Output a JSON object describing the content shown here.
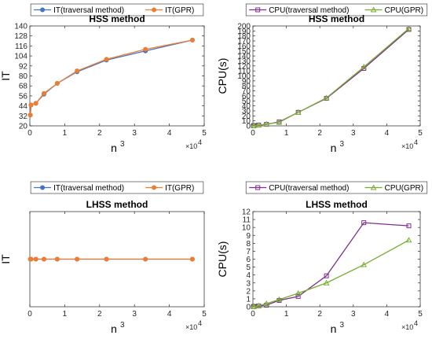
{
  "chart_data": [
    {
      "type": "line",
      "title": "HSS method",
      "xlabel": "n",
      "xlabel_sup": "3",
      "ylabel": "IT",
      "xlim": [
        0,
        5
      ],
      "ylim": [
        20,
        140
      ],
      "x_multiplier": "×10",
      "x_multiplier_exp": "4",
      "xticks": [
        "0",
        "1",
        "2",
        "3",
        "4",
        "5"
      ],
      "yticks": [
        "20",
        "32",
        "44",
        "56",
        "68",
        "80",
        "92",
        "104",
        "116",
        "128",
        "140"
      ],
      "legend": "top",
      "grid": false,
      "x": [
        0.0144,
        0.0343,
        0.1728,
        0.405,
        0.785,
        1.354,
        2.197,
        3.315,
        4.66
      ],
      "series": [
        {
          "name": "IT(traversal method)",
          "color": "#4472C4",
          "marker": "circle",
          "values": [
            33,
            45,
            47,
            58,
            71,
            85,
            99,
            110,
            123
          ]
        },
        {
          "name": "IT(GPR)",
          "color": "#ED7D31",
          "marker": "circle",
          "values": [
            33,
            45,
            47,
            59,
            71,
            86,
            100,
            112,
            123
          ]
        }
      ]
    },
    {
      "type": "line",
      "title": "HSS method",
      "xlabel": "n",
      "xlabel_sup": "3",
      "ylabel": "CPU(s)",
      "xlim": [
        0,
        5
      ],
      "ylim": [
        0,
        200
      ],
      "x_multiplier": "×10",
      "x_multiplier_exp": "4",
      "xticks": [
        "0",
        "1",
        "2",
        "3",
        "4",
        "5"
      ],
      "yticks": [
        "0",
        "10",
        "20",
        "30",
        "40",
        "50",
        "60",
        "70",
        "80",
        "90",
        "100",
        "110",
        "120",
        "130",
        "140",
        "150",
        "160",
        "170",
        "180",
        "190",
        "200"
      ],
      "legend": "top",
      "grid": false,
      "x": [
        0.0144,
        0.0343,
        0.1728,
        0.405,
        0.785,
        1.354,
        2.197,
        3.315,
        4.66
      ],
      "series": [
        {
          "name": "CPU(traversal method)",
          "color": "#7E2F8E",
          "marker": "square",
          "values": [
            0.3,
            0.6,
            1.5,
            3,
            8,
            27,
            55,
            115,
            193
          ]
        },
        {
          "name": "CPU(GPR)",
          "color": "#77AC30",
          "marker": "triangle",
          "values": [
            0.3,
            0.6,
            1.5,
            3.5,
            7,
            27,
            56,
            118,
            195
          ]
        }
      ]
    },
    {
      "type": "line",
      "title": "LHSS method",
      "xlabel": "n",
      "xlabel_sup": "3",
      "ylabel": "IT",
      "xlim": [
        0,
        5
      ],
      "ylim": [
        -1,
        1
      ],
      "x_multiplier": "×10",
      "x_multiplier_exp": "4",
      "xticks": [
        "0",
        "1",
        "2",
        "3",
        "4",
        "5"
      ],
      "yticks": [],
      "legend": "top",
      "grid": false,
      "x": [
        0.0144,
        0.0343,
        0.1728,
        0.405,
        0.785,
        1.354,
        2.197,
        3.315,
        4.66
      ],
      "series": [
        {
          "name": "IT(traversal method)",
          "color": "#4472C4",
          "marker": "circle",
          "values": [
            0,
            0,
            0,
            0,
            0,
            0,
            0,
            0,
            0
          ]
        },
        {
          "name": "IT(GPR)",
          "color": "#ED7D31",
          "marker": "circle",
          "values": [
            0,
            0,
            0,
            0,
            0,
            0,
            0,
            0,
            0
          ]
        }
      ]
    },
    {
      "type": "line",
      "title": "LHSS method",
      "xlabel": "n",
      "xlabel_sup": "3",
      "ylabel": "CPU(s)",
      "xlim": [
        0,
        5
      ],
      "ylim": [
        0,
        12
      ],
      "x_multiplier": "×10",
      "x_multiplier_exp": "4",
      "xticks": [
        "0",
        "1",
        "2",
        "3",
        "4",
        "5"
      ],
      "yticks": [
        "0",
        "1",
        "2",
        "3",
        "4",
        "5",
        "6",
        "7",
        "8",
        "9",
        "10",
        "11",
        "12"
      ],
      "legend": "top",
      "grid": false,
      "x": [
        0.0144,
        0.0343,
        0.1728,
        0.405,
        0.785,
        1.354,
        2.197,
        3.315,
        4.66
      ],
      "series": [
        {
          "name": "CPU(traversal method)",
          "color": "#7E2F8E",
          "marker": "square",
          "values": [
            0.02,
            0.05,
            0.1,
            0.2,
            0.8,
            1.3,
            3.9,
            10.6,
            10.2
          ]
        },
        {
          "name": "CPU(GPR)",
          "color": "#77AC30",
          "marker": "triangle",
          "values": [
            0.02,
            0.05,
            0.12,
            0.4,
            0.9,
            1.7,
            3.0,
            5.3,
            8.4
          ]
        }
      ]
    }
  ]
}
